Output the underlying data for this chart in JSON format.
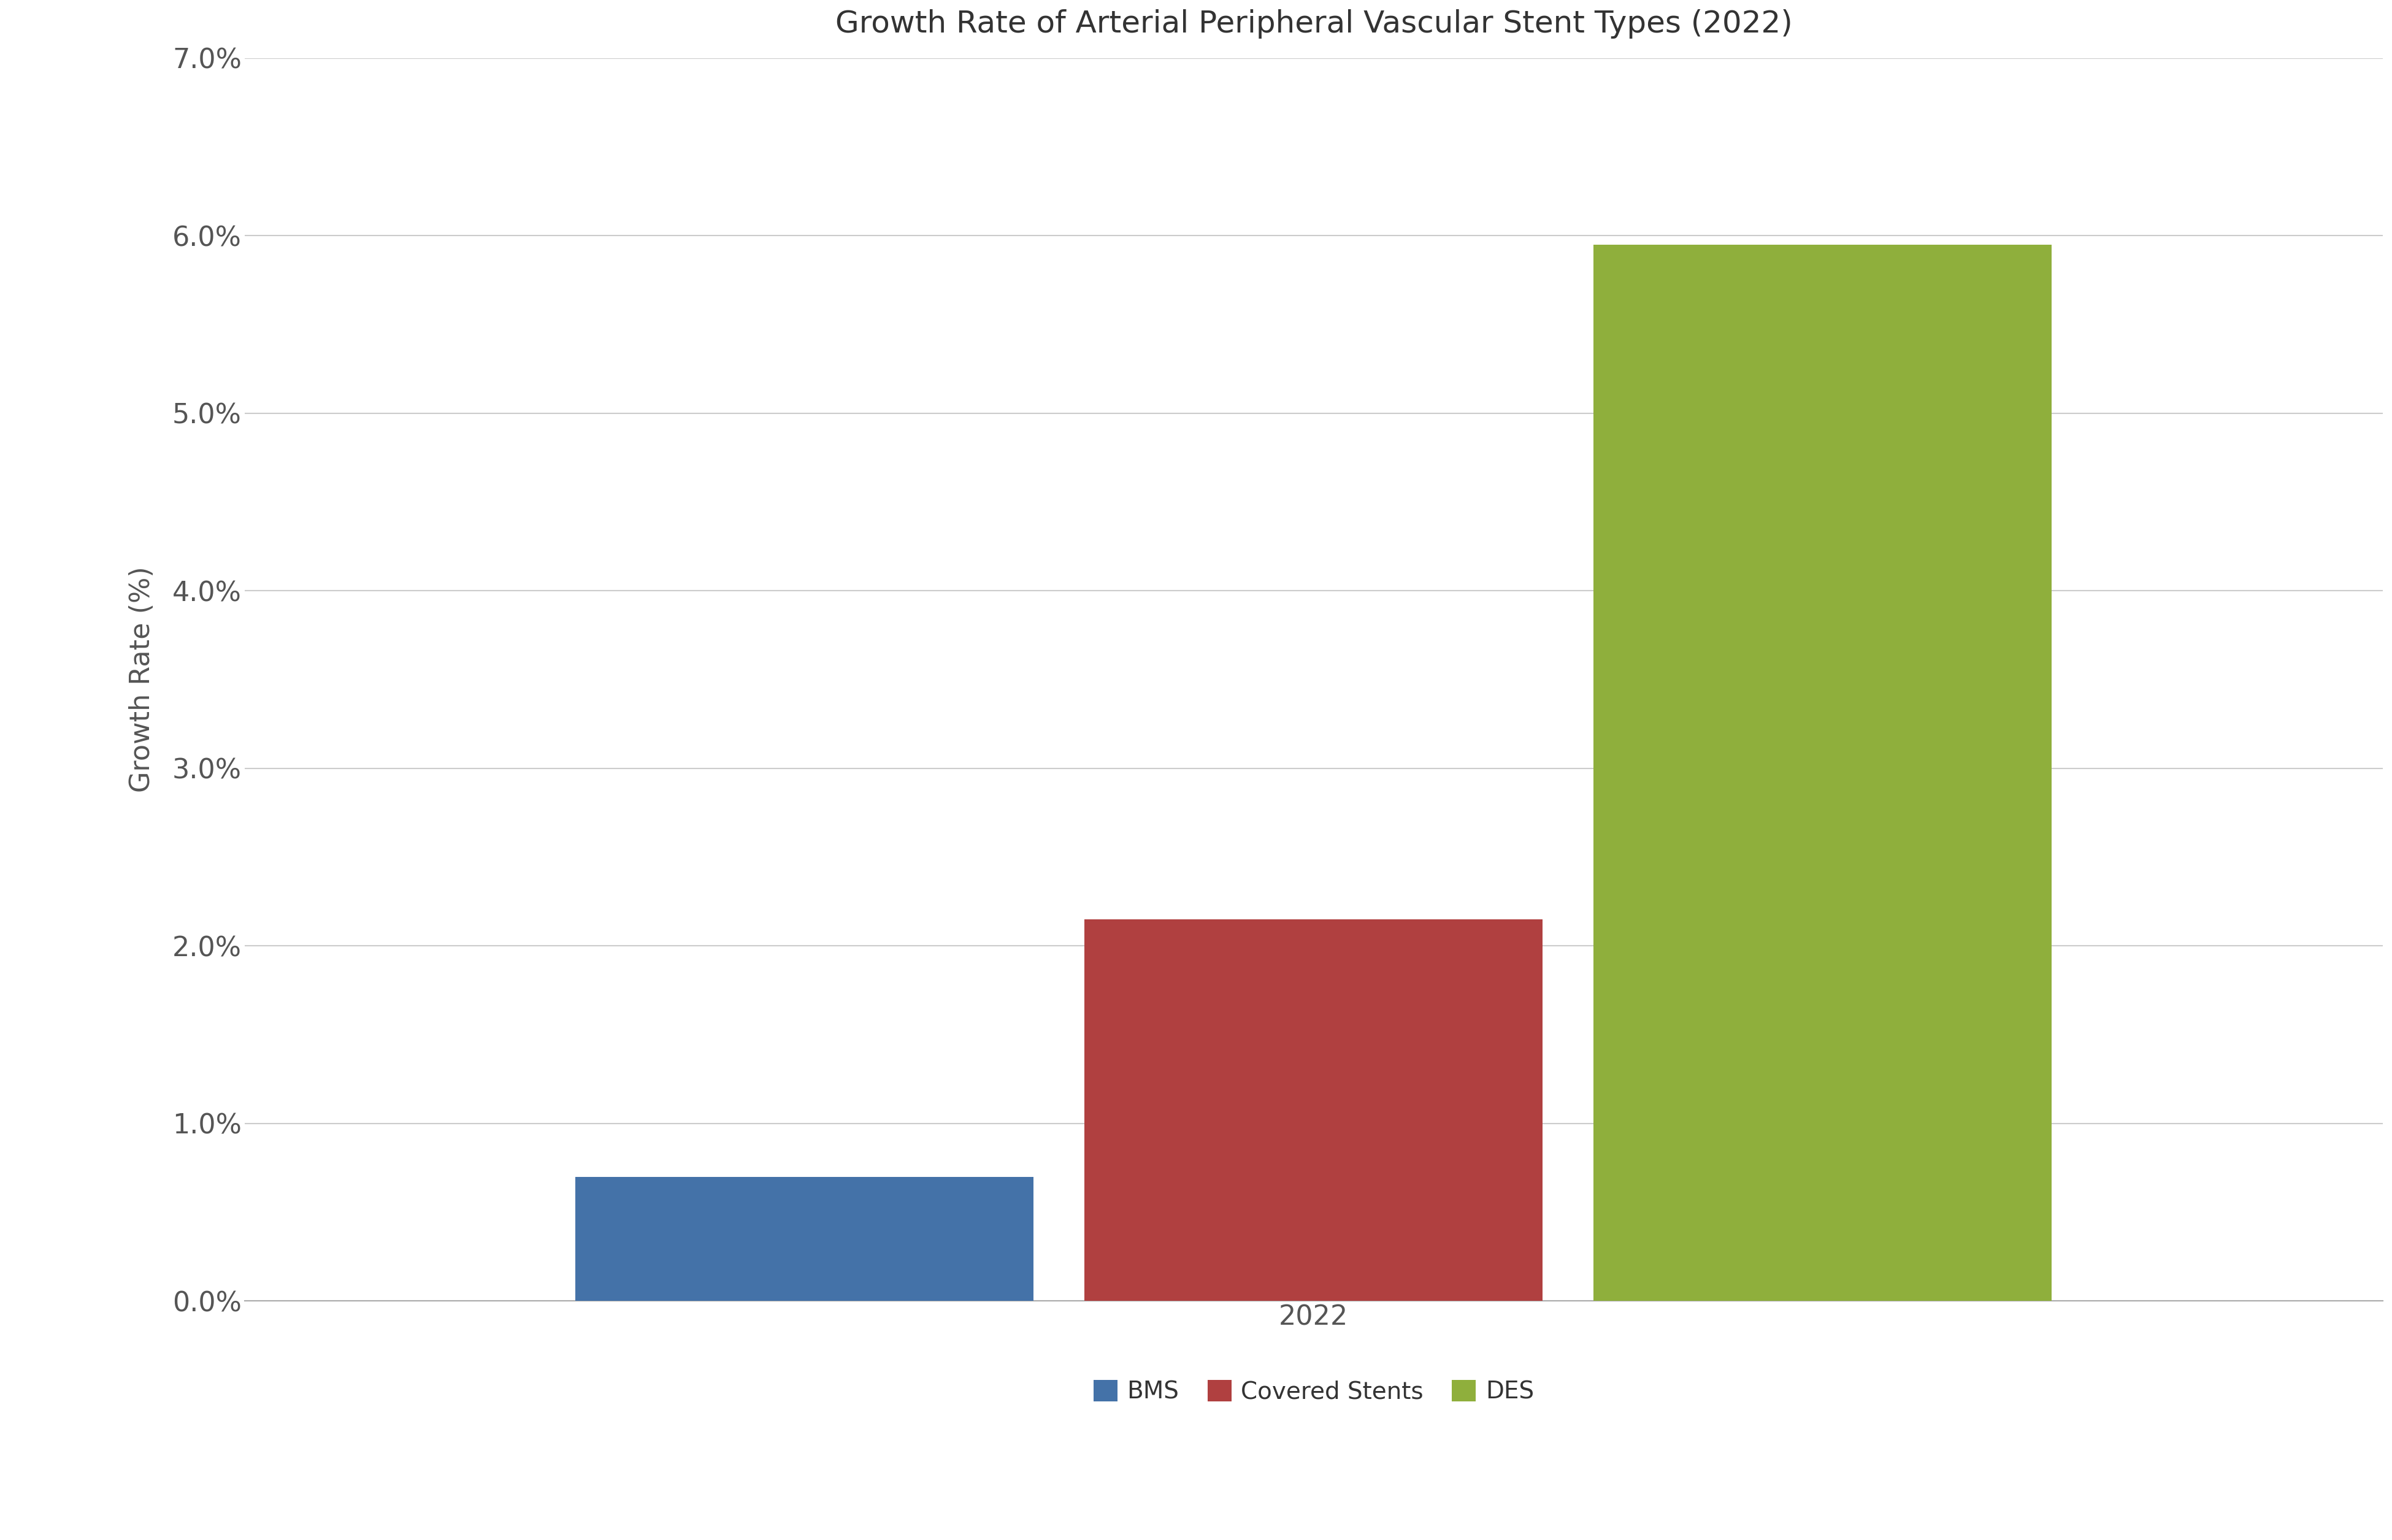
{
  "title": "Growth Rate of Arterial Peripheral Vascular Stent Types (2022)",
  "xlabel": "2022",
  "ylabel": "Growth Rate (%)",
  "categories": [
    "BMS",
    "Covered Stents",
    "DES"
  ],
  "values": [
    0.007,
    0.0215,
    0.0595
  ],
  "bar_colors": [
    "#4472a8",
    "#b04040",
    "#8faf3c"
  ],
  "ylim": [
    0.0,
    0.07
  ],
  "yticks": [
    0.0,
    0.01,
    0.02,
    0.03,
    0.04,
    0.05,
    0.06,
    0.07
  ],
  "ytick_labels": [
    "0.0%",
    "1.0%",
    "2.0%",
    "3.0%",
    "4.0%",
    "5.0%",
    "6.0%",
    "7.0%"
  ],
  "background_color": "#ffffff",
  "title_fontsize": 36,
  "axis_label_fontsize": 32,
  "tick_fontsize": 32,
  "legend_fontsize": 28,
  "bar_width": 0.18,
  "group_width": 0.6
}
